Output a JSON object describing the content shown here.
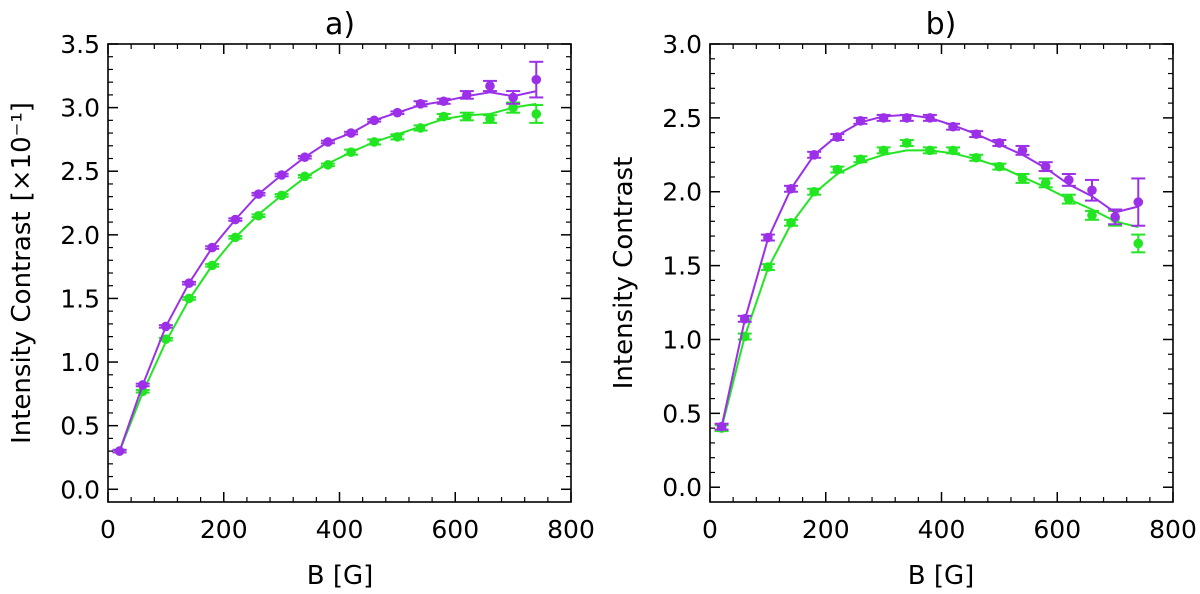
{
  "chart_data": [
    {
      "type": "scatter",
      "panel_label": "a)",
      "xlabel": "B [G]",
      "ylabel": "Intensity Contrast",
      "ylabel_unit": "[×10⁻¹]",
      "xlim": [
        0,
        800
      ],
      "ylim": [
        -0.1,
        3.5
      ],
      "xticks": [
        "0",
        "200",
        "400",
        "600",
        "800"
      ],
      "xtick_values": [
        0,
        200,
        400,
        600,
        800
      ],
      "yticks": [
        "0.0",
        "0.5",
        "1.0",
        "1.5",
        "2.0",
        "2.5",
        "3.0",
        "3.5"
      ],
      "ytick_values": [
        0.0,
        0.5,
        1.0,
        1.5,
        2.0,
        2.5,
        3.0,
        3.5
      ],
      "series": [
        {
          "name": "purple",
          "color": "#9b30e8",
          "x": [
            20,
            60,
            100,
            140,
            180,
            220,
            260,
            300,
            340,
            380,
            420,
            460,
            500,
            540,
            580,
            620,
            660,
            700,
            740
          ],
          "y": [
            0.3,
            0.82,
            1.28,
            1.62,
            1.9,
            2.12,
            2.32,
            2.47,
            2.61,
            2.73,
            2.8,
            2.9,
            2.96,
            3.03,
            3.05,
            3.1,
            3.17,
            3.08,
            3.22
          ],
          "err": [
            0.01,
            0.01,
            0.01,
            0.01,
            0.01,
            0.01,
            0.01,
            0.01,
            0.01,
            0.01,
            0.01,
            0.01,
            0.01,
            0.02,
            0.02,
            0.03,
            0.04,
            0.05,
            0.14
          ],
          "fit_x": [
            20,
            60,
            100,
            140,
            180,
            220,
            260,
            300,
            340,
            380,
            420,
            460,
            500,
            540,
            580,
            620,
            660,
            700,
            740
          ],
          "fit_y": [
            0.3,
            0.82,
            1.28,
            1.62,
            1.9,
            2.12,
            2.32,
            2.47,
            2.61,
            2.73,
            2.8,
            2.9,
            2.96,
            3.02,
            3.05,
            3.09,
            3.12,
            3.09,
            3.13
          ]
        },
        {
          "name": "green",
          "color": "#22e622",
          "x": [
            20,
            60,
            100,
            140,
            180,
            220,
            260,
            300,
            340,
            380,
            420,
            460,
            500,
            540,
            580,
            620,
            660,
            700,
            740
          ],
          "y": [
            0.3,
            0.77,
            1.18,
            1.5,
            1.76,
            1.98,
            2.15,
            2.31,
            2.46,
            2.55,
            2.65,
            2.73,
            2.77,
            2.84,
            2.93,
            2.93,
            2.91,
            3.0,
            2.95
          ],
          "err": [
            0.01,
            0.01,
            0.01,
            0.01,
            0.01,
            0.01,
            0.01,
            0.01,
            0.01,
            0.01,
            0.02,
            0.02,
            0.02,
            0.02,
            0.02,
            0.03,
            0.03,
            0.04,
            0.07
          ],
          "fit_x": [
            20,
            60,
            100,
            140,
            180,
            220,
            260,
            300,
            340,
            380,
            420,
            460,
            500,
            540,
            580,
            620,
            660,
            700,
            740
          ],
          "fit_y": [
            0.3,
            0.76,
            1.16,
            1.49,
            1.76,
            1.98,
            2.16,
            2.31,
            2.45,
            2.56,
            2.65,
            2.73,
            2.79,
            2.85,
            2.91,
            2.94,
            2.95,
            3.0,
            3.03
          ]
        }
      ]
    },
    {
      "type": "scatter",
      "panel_label": "b)",
      "xlabel": "B [G]",
      "ylabel": "Intensity Contrast",
      "xlim": [
        0,
        800
      ],
      "ylim": [
        -0.1,
        3.0
      ],
      "xticks": [
        "0",
        "200",
        "400",
        "600",
        "800"
      ],
      "xtick_values": [
        0,
        200,
        400,
        600,
        800
      ],
      "yticks": [
        "0.0",
        "0.5",
        "1.0",
        "1.5",
        "2.0",
        "2.5",
        "3.0"
      ],
      "ytick_values": [
        0.0,
        0.5,
        1.0,
        1.5,
        2.0,
        2.5,
        3.0
      ],
      "series": [
        {
          "name": "purple",
          "color": "#9b30e8",
          "x": [
            20,
            60,
            100,
            140,
            180,
            220,
            260,
            300,
            340,
            380,
            420,
            460,
            500,
            540,
            580,
            620,
            660,
            700,
            740
          ],
          "y": [
            0.41,
            1.14,
            1.69,
            2.02,
            2.25,
            2.37,
            2.48,
            2.5,
            2.5,
            2.5,
            2.44,
            2.39,
            2.33,
            2.28,
            2.17,
            2.08,
            2.01,
            1.83,
            1.93
          ],
          "err": [
            0.02,
            0.02,
            0.02,
            0.02,
            0.02,
            0.02,
            0.02,
            0.02,
            0.02,
            0.02,
            0.02,
            0.02,
            0.02,
            0.03,
            0.03,
            0.04,
            0.07,
            0.05,
            0.16
          ],
          "fit_x": [
            20,
            60,
            100,
            140,
            180,
            220,
            260,
            300,
            340,
            380,
            420,
            460,
            500,
            540,
            580,
            620,
            660,
            700,
            740
          ],
          "fit_y": [
            0.41,
            1.13,
            1.68,
            2.02,
            2.25,
            2.38,
            2.47,
            2.51,
            2.52,
            2.5,
            2.45,
            2.39,
            2.32,
            2.25,
            2.16,
            2.05,
            1.97,
            1.86,
            1.9
          ]
        },
        {
          "name": "green",
          "color": "#22e622",
          "x": [
            20,
            60,
            100,
            140,
            180,
            220,
            260,
            300,
            340,
            380,
            420,
            460,
            500,
            540,
            580,
            620,
            660,
            700,
            740
          ],
          "y": [
            0.4,
            1.02,
            1.49,
            1.79,
            2.0,
            2.15,
            2.22,
            2.28,
            2.33,
            2.28,
            2.28,
            2.23,
            2.17,
            2.09,
            2.06,
            1.95,
            1.84,
            1.82,
            1.65
          ],
          "err": [
            0.02,
            0.02,
            0.02,
            0.02,
            0.02,
            0.02,
            0.02,
            0.02,
            0.02,
            0.02,
            0.02,
            0.02,
            0.02,
            0.03,
            0.03,
            0.03,
            0.03,
            0.05,
            0.06
          ],
          "fit_x": [
            20,
            60,
            100,
            140,
            180,
            220,
            260,
            300,
            340,
            380,
            420,
            460,
            500,
            540,
            580,
            620,
            660,
            700,
            740
          ],
          "fit_y": [
            0.4,
            1.02,
            1.48,
            1.78,
            1.99,
            2.12,
            2.2,
            2.25,
            2.28,
            2.28,
            2.26,
            2.22,
            2.17,
            2.1,
            2.03,
            1.95,
            1.88,
            1.8,
            1.76
          ]
        }
      ]
    }
  ]
}
